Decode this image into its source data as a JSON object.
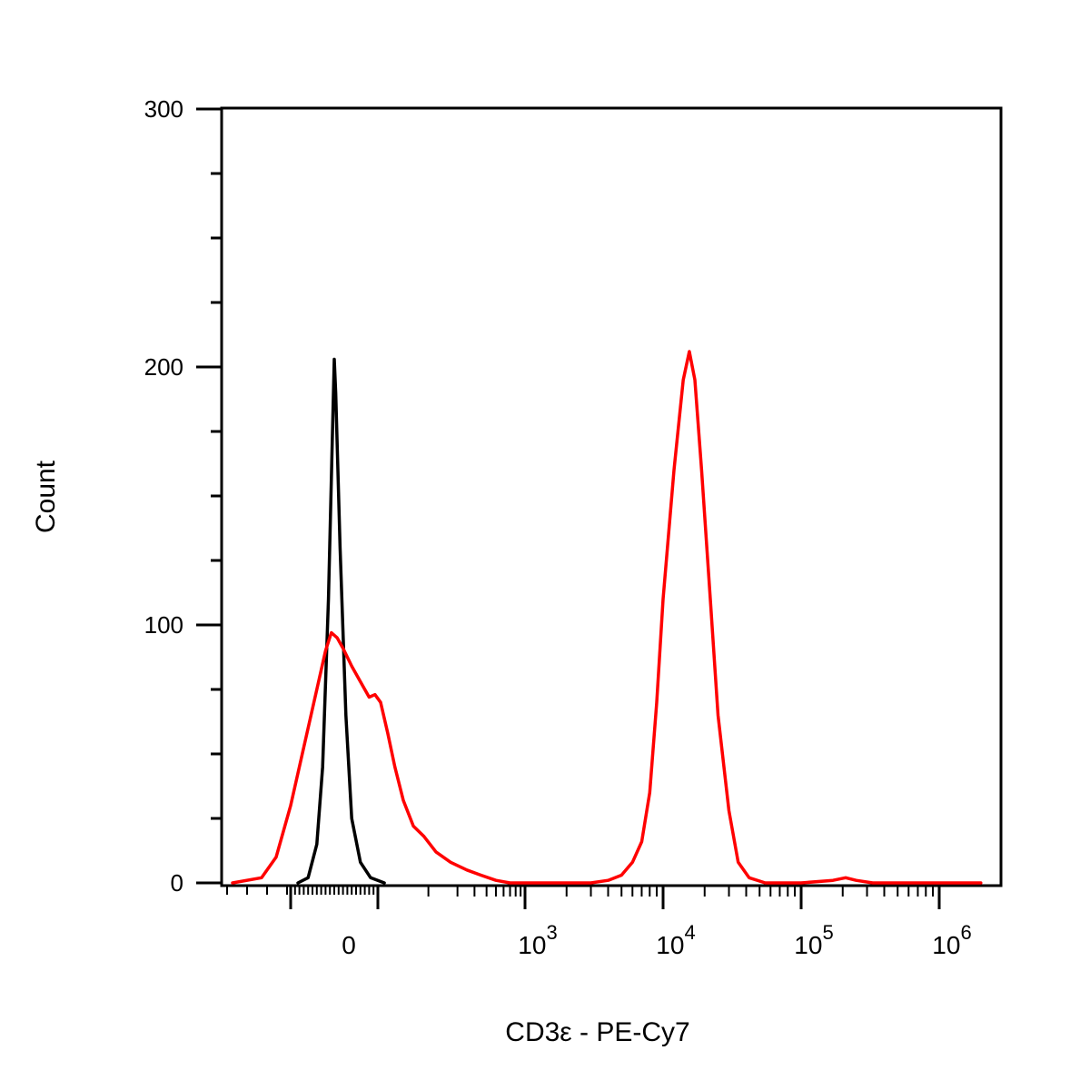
{
  "chart_data": {
    "type": "line",
    "title": "",
    "xlabel": "CD3ε - PE-Cy7",
    "ylabel": "Count",
    "x_scale": "biexponential",
    "ylim": [
      0,
      300
    ],
    "y_ticks": [
      {
        "value": 0,
        "label": "0"
      },
      {
        "value": 100,
        "label": "100"
      },
      {
        "value": 200,
        "label": "200"
      },
      {
        "value": 300,
        "label": "300"
      }
    ],
    "x_ticks": [
      {
        "value": 0,
        "label": "0",
        "exp": ""
      },
      {
        "value": 1000,
        "label": "10",
        "exp": "3"
      },
      {
        "value": 10000,
        "label": "10",
        "exp": "4"
      },
      {
        "value": 100000,
        "label": "10",
        "exp": "5"
      },
      {
        "value": 1000000,
        "label": "10",
        "exp": "6"
      }
    ],
    "colors": {
      "series_control": "#000000",
      "series_stained": "#ff0000"
    },
    "series": [
      {
        "color": "#000000",
        "points": [
          [
            -25,
            0
          ],
          [
            -18,
            2
          ],
          [
            -12,
            15
          ],
          [
            -8,
            45
          ],
          [
            -4,
            110
          ],
          [
            -1,
            180
          ],
          [
            0,
            203
          ],
          [
            1,
            190
          ],
          [
            4,
            130
          ],
          [
            8,
            65
          ],
          [
            12,
            25
          ],
          [
            18,
            8
          ],
          [
            25,
            2
          ],
          [
            35,
            0
          ]
        ]
      },
      {
        "color": "#ff0000",
        "points": [
          [
            -70,
            0
          ],
          [
            -50,
            2
          ],
          [
            -40,
            10
          ],
          [
            -30,
            30
          ],
          [
            -20,
            55
          ],
          [
            -12,
            75
          ],
          [
            -6,
            90
          ],
          [
            -2,
            97
          ],
          [
            2,
            95
          ],
          [
            6,
            91
          ],
          [
            12,
            84
          ],
          [
            18,
            78
          ],
          [
            24,
            72
          ],
          [
            28,
            73
          ],
          [
            32,
            70
          ],
          [
            38,
            58
          ],
          [
            45,
            45
          ],
          [
            55,
            32
          ],
          [
            70,
            22
          ],
          [
            90,
            18
          ],
          [
            120,
            12
          ],
          [
            170,
            8
          ],
          [
            250,
            5
          ],
          [
            350,
            3
          ],
          [
            500,
            1
          ],
          [
            700,
            0
          ],
          [
            3000,
            0
          ],
          [
            4000,
            1
          ],
          [
            5000,
            3
          ],
          [
            6000,
            8
          ],
          [
            7000,
            16
          ],
          [
            8000,
            35
          ],
          [
            9000,
            70
          ],
          [
            10000,
            110
          ],
          [
            12000,
            160
          ],
          [
            14000,
            195
          ],
          [
            15500,
            206
          ],
          [
            17000,
            195
          ],
          [
            19000,
            160
          ],
          [
            22000,
            110
          ],
          [
            25000,
            65
          ],
          [
            30000,
            28
          ],
          [
            35000,
            8
          ],
          [
            42000,
            2
          ],
          [
            55000,
            0
          ],
          [
            100000,
            0
          ],
          [
            170000,
            1
          ],
          [
            210000,
            2
          ],
          [
            250000,
            1
          ],
          [
            330000,
            0
          ],
          [
            2000000,
            0
          ]
        ]
      }
    ]
  }
}
